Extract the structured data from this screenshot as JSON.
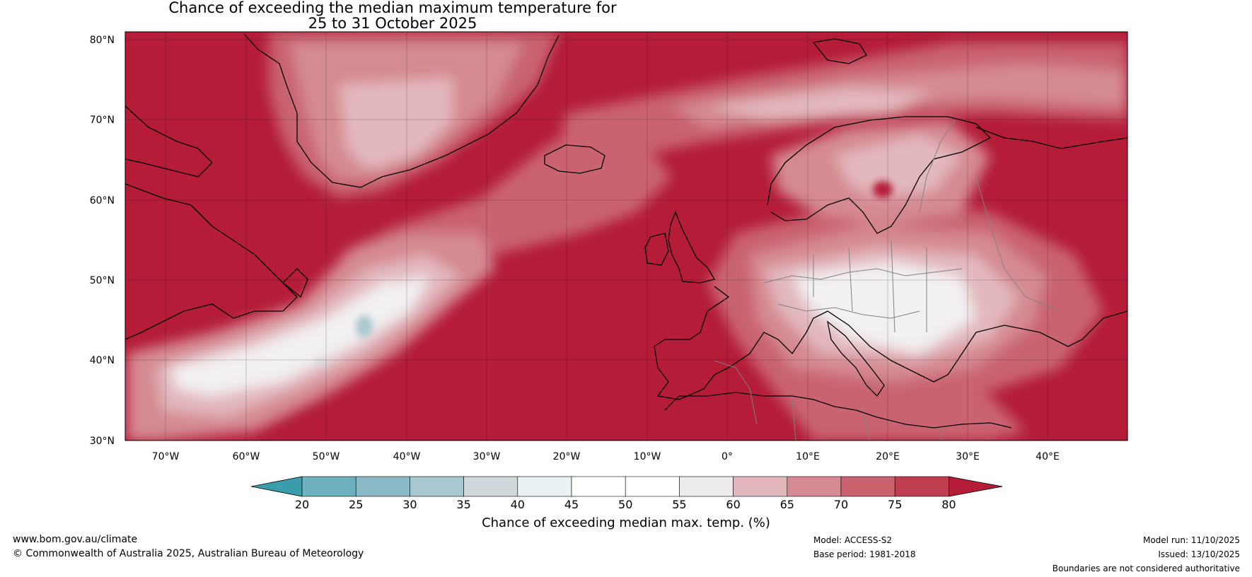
{
  "title": {
    "line1": "Chance of exceeding the median maximum temperature for",
    "line2": "25 to 31 October 2025"
  },
  "map": {
    "lat_labels": [
      "80°N",
      "70°N",
      "60°N",
      "50°N",
      "40°N",
      "30°N"
    ],
    "lon_labels": [
      "70°W",
      "60°W",
      "50°W",
      "40°W",
      "30°W",
      "20°W",
      "10°W",
      "0°",
      "10°E",
      "20°E",
      "30°E",
      "40°E"
    ],
    "lon_range": [
      -75,
      50
    ],
    "lat_range": [
      30,
      81
    ],
    "background_color": "#b41c38",
    "coast_color": "#000000",
    "border_color": "#808080"
  },
  "colorbar": {
    "ticks": [
      "20",
      "25",
      "30",
      "35",
      "40",
      "45",
      "50",
      "55",
      "60",
      "65",
      "70",
      "75",
      "80"
    ],
    "colors": [
      "#3a9dac",
      "#6eb0bd",
      "#8bb9c5",
      "#a9c7cf",
      "#cfd8da",
      "#eaf1f3",
      "#ffffff",
      "#ffffff",
      "#eeebec",
      "#e2b8bd",
      "#d58a93",
      "#c9636f",
      "#bf3e4f",
      "#b41c38"
    ],
    "label": "Chance of exceeding median max. temp. (%)"
  },
  "footer": {
    "website": "www.bom.gov.au/climate",
    "copyright": "© Commonwealth of Australia 2025, Australian Bureau of Meteorology",
    "model": "Model: ACCESS-S2",
    "base_period": "Base period: 1981-2018",
    "model_run": "Model run: 11/10/2025",
    "issued": "Issued: 13/10/2025",
    "disclaimer": "Boundaries are not considered authoritative"
  }
}
